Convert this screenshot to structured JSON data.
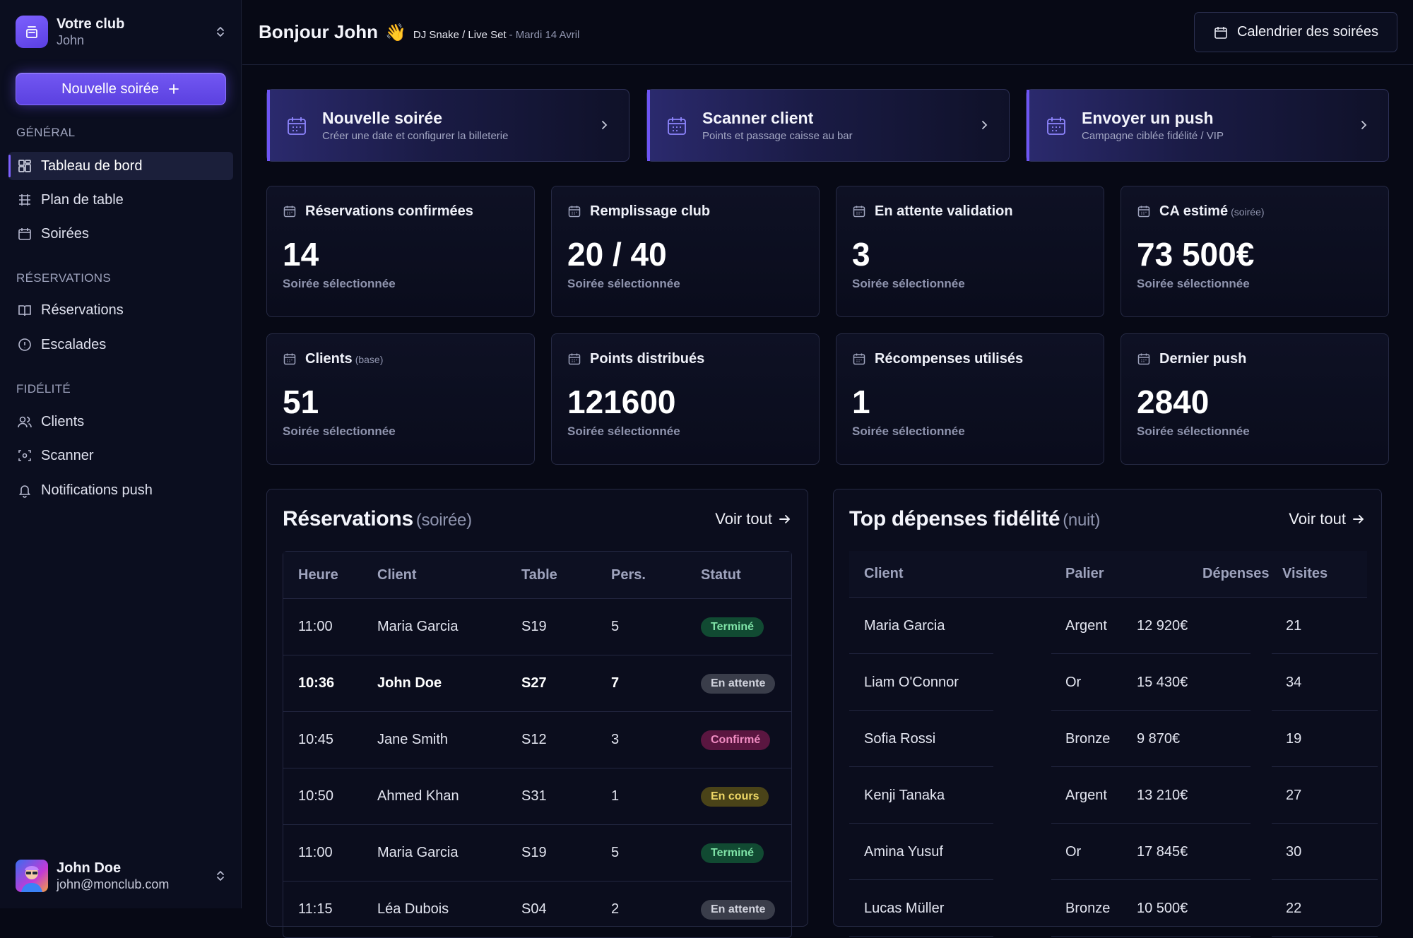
{
  "sidebar": {
    "club_name": "Votre club",
    "club_user": "John",
    "new_button": "Nouvelle soirée",
    "sections": [
      {
        "title": "GÉNÉRAL",
        "items": [
          {
            "label": "Tableau de bord",
            "icon": "dashboard-icon",
            "active": true
          },
          {
            "label": "Plan de table",
            "icon": "grid-icon"
          },
          {
            "label": "Soirées",
            "icon": "calendar-icon"
          }
        ]
      },
      {
        "title": "RÉSERVATIONS",
        "items": [
          {
            "label": "Réservations",
            "icon": "book-icon"
          },
          {
            "label": "Escalades",
            "icon": "alert-icon"
          }
        ]
      },
      {
        "title": "FIDÉLITÉ",
        "items": [
          {
            "label": "Clients",
            "icon": "users-icon"
          },
          {
            "label": "Scanner",
            "icon": "scan-icon"
          },
          {
            "label": "Notifications push",
            "icon": "bell-icon"
          }
        ]
      }
    ],
    "user": {
      "name": "John Doe",
      "email": "john@monclub.com"
    }
  },
  "header": {
    "greeting": "Bonjour John",
    "wave": "👋",
    "event": "DJ Snake / Live Set",
    "date": "- Mardi 14 Avril",
    "calendar_button": "Calendrier des soirées"
  },
  "actions": [
    {
      "title": "Nouvelle soirée",
      "subtitle": "Créer une date et configurer la billeterie"
    },
    {
      "title": "Scanner client",
      "subtitle": "Points et passage caisse au bar"
    },
    {
      "title": "Envoyer un push",
      "subtitle": "Campagne ciblée fidélité / VIP"
    }
  ],
  "stats": [
    {
      "label": "Réservations confirmées",
      "note": "",
      "value": "14",
      "sub": "Soirée sélectionnée"
    },
    {
      "label": "Remplissage club",
      "note": "",
      "value": "20 / 40",
      "sub": "Soirée sélectionnée"
    },
    {
      "label": "En attente validation",
      "note": "",
      "value": "3",
      "sub": "Soirée sélectionnée"
    },
    {
      "label": "CA estimé",
      "note": "(soirée)",
      "value": "73 500€",
      "sub": "Soirée sélectionnée"
    },
    {
      "label": "Clients",
      "note": "(base)",
      "value": "51",
      "sub": "Soirée sélectionnée"
    },
    {
      "label": "Points distribués",
      "note": "",
      "value": "121600",
      "sub": "Soirée sélectionnée"
    },
    {
      "label": "Récompenses utilisés",
      "note": "",
      "value": "1",
      "sub": "Soirée sélectionnée"
    },
    {
      "label": "Dernier push",
      "note": "",
      "value": "2840",
      "sub": "Soirée sélectionnée"
    }
  ],
  "reservations": {
    "title": "Réservations",
    "note": "(soirée)",
    "see_all": "Voir tout",
    "columns": [
      "Heure",
      "Client",
      "Table",
      "Pers.",
      "Statut"
    ],
    "rows": [
      {
        "time": "11:00",
        "client": "Maria Garcia",
        "table": "S19",
        "pers": "5",
        "status": "Terminé",
        "tone": "green"
      },
      {
        "time": "10:36",
        "client": "John Doe",
        "table": "S27",
        "pers": "7",
        "status": "En attente",
        "tone": "grey",
        "bold": true
      },
      {
        "time": "10:45",
        "client": "Jane Smith",
        "table": "S12",
        "pers": "3",
        "status": "Confirmé",
        "tone": "pink"
      },
      {
        "time": "10:50",
        "client": "Ahmed Khan",
        "table": "S31",
        "pers": "1",
        "status": "En cours",
        "tone": "yellow"
      },
      {
        "time": "11:00",
        "client": "Maria Garcia",
        "table": "S19",
        "pers": "5",
        "status": "Terminé",
        "tone": "green"
      },
      {
        "time": "11:15",
        "client": "Léa Dubois",
        "table": "S04",
        "pers": "2",
        "status": "En attente",
        "tone": "grey"
      }
    ]
  },
  "loyalty": {
    "title": "Top dépenses fidélité",
    "note": "(nuit)",
    "see_all": "Voir tout",
    "columns": [
      "Client",
      "Palier",
      "Dépenses",
      "Visites"
    ],
    "rows": [
      {
        "client": "Maria Garcia",
        "tier": "Argent",
        "spend": "12 920€",
        "visits": "21"
      },
      {
        "client": "Liam O'Connor",
        "tier": "Or",
        "spend": "15 430€",
        "visits": "34"
      },
      {
        "client": "Sofia Rossi",
        "tier": "Bronze",
        "spend": "9 870€",
        "visits": "19"
      },
      {
        "client": "Kenji Tanaka",
        "tier": "Argent",
        "spend": "13 210€",
        "visits": "27"
      },
      {
        "client": "Amina Yusuf",
        "tier": "Or",
        "spend": "17 845€",
        "visits": "30"
      },
      {
        "client": "Lucas Müller",
        "tier": "Bronze",
        "spend": "10 500€",
        "visits": "22"
      }
    ]
  },
  "colors": {
    "accent": "#6e55f5",
    "background": "#070915",
    "sidebar": "#0b0e1f"
  }
}
